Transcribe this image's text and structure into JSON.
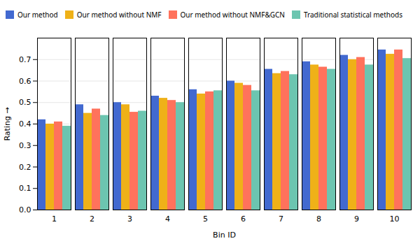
{
  "chart_data": {
    "type": "bar",
    "xlabel": "Bin ID",
    "ylabel": "Rating",
    "categories": [
      1,
      2,
      3,
      4,
      5,
      6,
      7,
      8,
      9,
      10
    ],
    "series": [
      {
        "name": "Our method",
        "values": [
          0.42,
          0.49,
          0.5,
          0.53,
          0.56,
          0.6,
          0.655,
          0.69,
          0.72,
          0.745
        ]
      },
      {
        "name": "Our method without NMF",
        "values": [
          0.4,
          0.45,
          0.49,
          0.52,
          0.54,
          0.59,
          0.635,
          0.675,
          0.7,
          0.725
        ]
      },
      {
        "name": "Our method without NMF&GCN",
        "values": [
          0.41,
          0.47,
          0.455,
          0.51,
          0.55,
          0.58,
          0.645,
          0.665,
          0.71,
          0.745
        ]
      },
      {
        "name": "Traditional statistical methods",
        "values": [
          0.39,
          0.44,
          0.46,
          0.5,
          0.555,
          0.555,
          0.63,
          0.655,
          0.675,
          0.705
        ]
      }
    ],
    "ylim": [
      0.0,
      0.8
    ],
    "yticks": [
      {
        "value": 0,
        "label": "0.0"
      },
      0.1,
      0.2,
      0.3,
      0.4,
      0.5,
      0.6,
      0.7
    ],
    "grid": true,
    "legend": "upper left"
  }
}
